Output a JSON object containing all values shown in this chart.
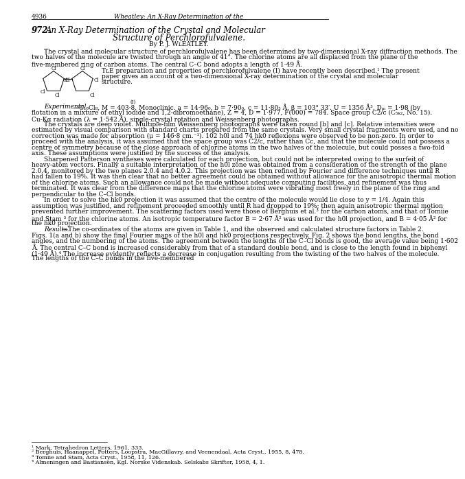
{
  "page_number": "4936",
  "header_italic": "Wheatley: An X-Ray Determination of the",
  "art_num": "972.",
  "title1": "An X-Ray Determination of the Crystal and Molecular",
  "title2": "Structure of Perchlorofulvalene.",
  "byline": "By P. J. WʟEATLEY.",
  "abstract": "The crystal and molecular structure of perchlorofulvalene has been determined by two-dimensional X-ray diffraction methods.  The two halves of the molecule are twisted through an angle of 41°.  The chlorine atoms are all displaced from the plane of the five-membered ring of carbon atoms. The central C–C bond adopts a length of 1·49 Å.",
  "para1_THE": "TʟE",
  "para1_rest": "preparation and properties of perchlorofulvalene (I) have recently been described.¹  The present paper gives an account of a two-dimensional X-ray determination of the crystal and molecular structure.",
  "para2_italic": "Experimental.",
  "para2_rest": "—C₁₀Cl₈,  M = 403·8.  Monoclinic.  a = 14·96₀,  b = 7·90₀,  c = 11·80₃ Å, β = 103° 33′.  U = 1356 Å³.  Dₘ = 1·98 (by flotation in a mixture of ethyl iodide and 1,2-dibromoethane),  Z = 4,  D⁣ = 1·977,  F(000) = 784.  Space group C2/c  (C₅ₖ₂,  No. 15).  Cu-Kα radiation (λ = 1·542 Å), single-crystal rotation and Weissenberg photographs.",
  "para3": "The crystals are deep violet.  Multiple-film Weissenberg photographs were taken round [b] and [c].  Relative intensities were estimated by visual comparison with standard charts prepared from the same crystals.  Very small crystal fragments were used, and no correction was made for absorption (μ = 146·8 cm.⁻¹).  102 h0l and 74 hk0 reflexions were observed to be non-zero.  In order to proceed with the analysis, it was assumed that the space group was C2/c, rather than Cc, and that the molecule could not possess a centre of symmetry because of the close approach of chlorine atoms in the two halves of the molecule, but could posses a two-fold axis.  These assumptions were justified by the success of the analysis.",
  "para4": "Sharpened Patterson syntheses were calculated for each projection, but could not be interpreted owing to the surfeit of heavy-atom vectors.  Finally a suitable interpretation of the h0l zone was obtained from a consideration of the strength of the plane 2.0.4, monitored by the two planes 2.0.4 and 4.0.2.  This projection was then refined by Fourier and difference techniques until R had fallen to 19%.  It was then clear that no better agreement could be obtained without allowance for the anisotropic thermal motion of the chlorine atoms.  Such an allowance could not be made without adequate computing facilities, and refinement was thus terminated.  It was clear from the difference maps that the chlorine atoms were vibrating most freely in the plane of the ring and perpendicular to the C–Cl bonds.",
  "para5": "In order to solve the hk0 projection it was assumed that the centre of the molecule would lie close to y = 1/4.  Again this assumption was justified, and refinement proceeded smoothly until R had dropped to 19%;  then again anisotropic thermal motion prevented further improvement.  The scattering factors used were those of Berghuis et al.³ for the carbon atoms, and that of Tomiie and Stam ³ for the chlorine atoms.  An isotropic temperature factor B = 2·67 Å² was used for the h0l projection, and B = 4·05 Å² for the hk0 projection.",
  "para6_italic": "Results.",
  "para6_rest": "—The co-ordinates of the atoms are given in Table 1, and the observed and calculated structure factors in Table 2.  Figs. 1(a and b) show the final Fourier maps of the h0l and hk0 projections respectively.  Fig. 2 shows the bond lengths, the bond angles, and the numbering of the atoms.  The agreement between the lengths of the C–Cl bonds is good, the average value being 1·602 Å.  The central C–C bond is increased considerably from that of a standard double bond, and is close to the length found in biphenyl (1·49 Å).⁴  The increase evidently reflects a decrease in conjugation resulting from the twisting of the two halves of the molecule.  The lengths of the C–C bonds in the five-membered",
  "fn1": "¹ Mark, Tetrahedron Letters, 1961, 333.",
  "fn2": "² Berghuis, Haanappel, Potters, Loopstra, MacGillavry, and Veenendaal, Acta Cryst., 1955, 8, 478.",
  "fn3": "³ Tomiie and Stam, Acta Cryst., 1958, 11, 126.",
  "fn4": "⁴ Almeningen and Bastiansen, Kgl. Norske Videnskab. Selskabs Skrifter, 1958, 4, 1.",
  "bg": "#ffffff",
  "lm": 36,
  "rm": 468,
  "body_fs": 6.5,
  "hdr_fs": 6.5,
  "title_fs": 8.5,
  "fn_fs": 5.8,
  "lh": 8.5
}
